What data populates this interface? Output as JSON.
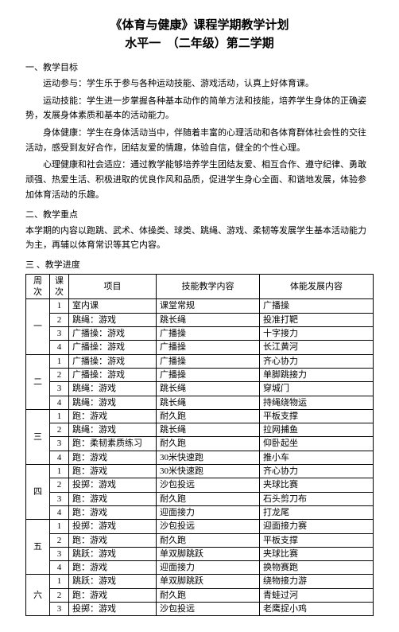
{
  "title": "《体育与健康》课程学期教学计划",
  "subtitle": "水平一　（二年级）第二学期",
  "section1": {
    "heading": "一、教学目标",
    "paras": [
      "运动参与：学生乐于参与各种运动技能、游戏活动，认真上好体育课。",
      "运动技能：学生进一步掌握各种基本动作的简单方法和技能，培养学生身体的正确姿势，发展身体素质和基本的活动能力。",
      "身体健康：学生在身体活动当中，伴随着丰富的心理活动和各体育群体社会性的交往活动，感受到友好合作，团结友爱的情趣，体验自信，健全的个性心理。",
      "心理健康和社会适应：通过教学能够培养学生团结友爱、相互合作、遵守纪律、勇敢顽强、热爱生活、积极进取的优良作风和品质，促进学生身心全面、和谐地发展，体验参加体育活动的乐趣。"
    ]
  },
  "section2": {
    "heading": "二、教学重点",
    "para": "本学期的内容以跑跳、武术、体操类、球类、跳绳、游戏、柔韧等发展学生基本活动能力为主，再辅以体育常识等其它内容。"
  },
  "section3": {
    "heading": "三 、教学进度",
    "headers": [
      "周次",
      "课次",
      "项目",
      "技能教学内容",
      "体能发展内容"
    ],
    "rows": [
      {
        "week": "一",
        "num": "1",
        "item": "室内课",
        "skill": "课堂常规",
        "fitness": "广播操"
      },
      {
        "week": "一",
        "num": "2",
        "item": "跳绳：游戏",
        "skill": "跳长绳",
        "fitness": "投准打靶"
      },
      {
        "week": "一",
        "num": "3",
        "item": "广播操：游戏",
        "skill": "广播操",
        "fitness": "十字接力"
      },
      {
        "week": "一",
        "num": "4",
        "item": "广播操：游戏",
        "skill": "广播操",
        "fitness": "长江黄河"
      },
      {
        "week": "二",
        "num": "1",
        "item": "广播操：游戏",
        "skill": "广播操",
        "fitness": "齐心协力"
      },
      {
        "week": "二",
        "num": "2",
        "item": "广播操：游戏",
        "skill": "广播操",
        "fitness": "单脚跳接力"
      },
      {
        "week": "二",
        "num": "3",
        "item": "跳绳：游戏",
        "skill": "跳长绳",
        "fitness": "穿城门"
      },
      {
        "week": "二",
        "num": "4",
        "item": "跳绳：游戏",
        "skill": "跳长绳",
        "fitness": "持绳绕物运"
      },
      {
        "week": "三",
        "num": "1",
        "item": "跑：游戏",
        "skill": "耐久跑",
        "fitness": "平板支撑"
      },
      {
        "week": "三",
        "num": "2",
        "item": "跳绳：游戏",
        "skill": "跳长绳",
        "fitness": "拉网捕鱼"
      },
      {
        "week": "三",
        "num": "3",
        "item": "跑：柔韧素质练习",
        "skill": "耐久跑",
        "fitness": "仰卧起坐"
      },
      {
        "week": "三",
        "num": "4",
        "item": "跑：游戏",
        "skill": "30米快速跑",
        "fitness": "推小车"
      },
      {
        "week": "四",
        "num": "1",
        "item": "跑：游戏",
        "skill": "30米快速跑",
        "fitness": "齐心协力"
      },
      {
        "week": "四",
        "num": "2",
        "item": "投掷：游戏",
        "skill": "沙包投远",
        "fitness": "夹球比赛"
      },
      {
        "week": "四",
        "num": "3",
        "item": "跑：游戏",
        "skill": "耐久跑",
        "fitness": "石头剪刀布"
      },
      {
        "week": "四",
        "num": "4",
        "item": "跑：游戏",
        "skill": "迎面接力",
        "fitness": "打龙尾"
      },
      {
        "week": "五",
        "num": "1",
        "item": "投掷：游戏",
        "skill": "沙包投远",
        "fitness": "迎面接力赛"
      },
      {
        "week": "五",
        "num": "2",
        "item": "跑：游戏",
        "skill": "耐久跑",
        "fitness": "平板支撑"
      },
      {
        "week": "五",
        "num": "3",
        "item": "跳跃：游戏",
        "skill": "单双脚跳跃",
        "fitness": "夹球比赛"
      },
      {
        "week": "五",
        "num": "4",
        "item": "跑：游戏",
        "skill": "迎面接力",
        "fitness": "换物赛跑"
      },
      {
        "week": "六",
        "num": "1",
        "item": "跳跃：游戏",
        "skill": "单双脚跳跃",
        "fitness": "绕物接力游"
      },
      {
        "week": "六",
        "num": "2",
        "item": "跑：游戏",
        "skill": "耐久跑",
        "fitness": "青蛙过河"
      },
      {
        "week": "六",
        "num": "3",
        "item": "投掷：游戏",
        "skill": "沙包投远",
        "fitness": "老鹰捉小鸡"
      }
    ],
    "weekSpans": {
      "一": 4,
      "二": 4,
      "三": 4,
      "四": 4,
      "五": 4,
      "六": 3
    }
  }
}
